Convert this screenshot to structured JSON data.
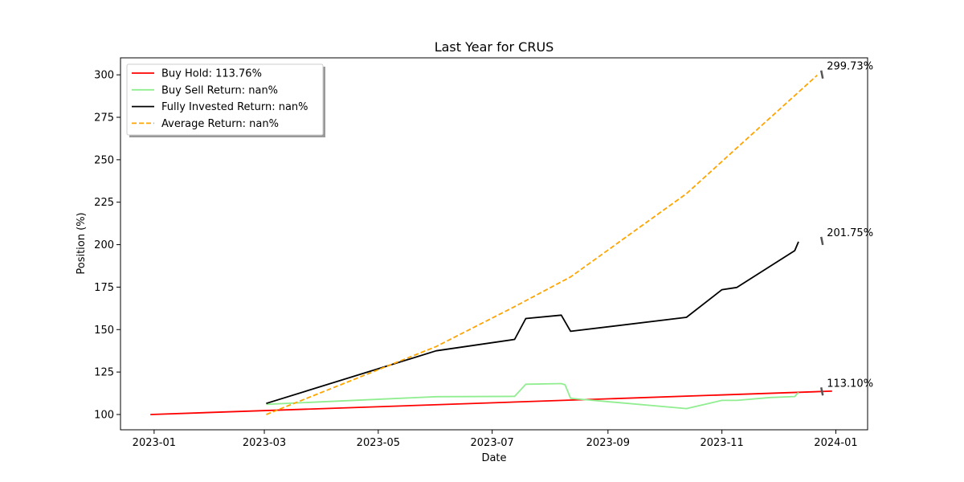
{
  "chart_data": {
    "type": "line",
    "title": "Last Year for CRUS",
    "xlabel": "Date",
    "ylabel": "Position (%)",
    "x_axis_type": "date",
    "xlim": [
      "2022-12-14",
      "2024-01-18"
    ],
    "ylim": [
      91,
      310
    ],
    "x_ticks": [
      "2023-01-01",
      "2023-03-01",
      "2023-05-01",
      "2023-07-01",
      "2023-09-01",
      "2023-11-01",
      "2024-01-01"
    ],
    "x_tick_labels": [
      "2023-01",
      "2023-03",
      "2023-05",
      "2023-07",
      "2023-09",
      "2023-11",
      "2024-01"
    ],
    "y_ticks": [
      100,
      125,
      150,
      175,
      200,
      225,
      250,
      275,
      300
    ],
    "y_tick_labels": [
      "100",
      "125",
      "150",
      "175",
      "200",
      "225",
      "250",
      "275",
      "300"
    ],
    "grid": false,
    "legend_placement": "top-left",
    "series": [
      {
        "name": "Buy Hold: 113.76%",
        "color": "#ff0000",
        "dash": "solid",
        "points": [
          [
            "2022-12-30",
            100.0
          ],
          [
            "2023-12-30",
            113.76
          ]
        ]
      },
      {
        "name": "Buy Sell Return: nan%",
        "color": "#90ee90",
        "dash": "solid",
        "points": [
          [
            "2023-03-02",
            106.0
          ],
          [
            "2023-06-01",
            110.5
          ],
          [
            "2023-07-13",
            110.7
          ],
          [
            "2023-07-19",
            117.8
          ],
          [
            "2023-08-07",
            118.2
          ],
          [
            "2023-08-09",
            117.5
          ],
          [
            "2023-08-12",
            109.5
          ],
          [
            "2023-10-13",
            103.5
          ],
          [
            "2023-11-01",
            108.3
          ],
          [
            "2023-11-09",
            108.3
          ],
          [
            "2023-11-27",
            110.0
          ],
          [
            "2023-12-10",
            110.6
          ],
          [
            "2023-12-12",
            113.1
          ]
        ]
      },
      {
        "name": "Fully Invested Return: nan%",
        "color": "#000000",
        "dash": "solid",
        "points": [
          [
            "2023-03-02",
            106.5
          ],
          [
            "2023-06-01",
            137.5
          ],
          [
            "2023-07-13",
            144.2
          ],
          [
            "2023-07-19",
            156.5
          ],
          [
            "2023-08-07",
            158.5
          ],
          [
            "2023-08-12",
            149.0
          ],
          [
            "2023-10-13",
            157.2
          ],
          [
            "2023-11-01",
            173.5
          ],
          [
            "2023-11-09",
            174.8
          ],
          [
            "2023-12-10",
            196.5
          ],
          [
            "2023-12-12",
            201.75
          ]
        ]
      },
      {
        "name": "Average Return: nan%",
        "color": "#ffa500",
        "dash": "dashed",
        "points": [
          [
            "2023-03-02",
            100.0
          ],
          [
            "2023-06-01",
            140.0
          ],
          [
            "2023-07-13",
            163.5
          ],
          [
            "2023-08-12",
            181.0
          ],
          [
            "2023-10-13",
            230.0
          ],
          [
            "2023-11-09",
            257.0
          ],
          [
            "2023-12-22",
            299.73
          ]
        ]
      }
    ],
    "annotations": [
      {
        "text": "299.73%",
        "date": "2023-12-22",
        "value": 299.73
      },
      {
        "text": "201.75%",
        "date": "2023-12-22",
        "value": 201.75
      },
      {
        "text": "113.10%",
        "date": "2023-12-22",
        "value": 113.1
      }
    ]
  }
}
